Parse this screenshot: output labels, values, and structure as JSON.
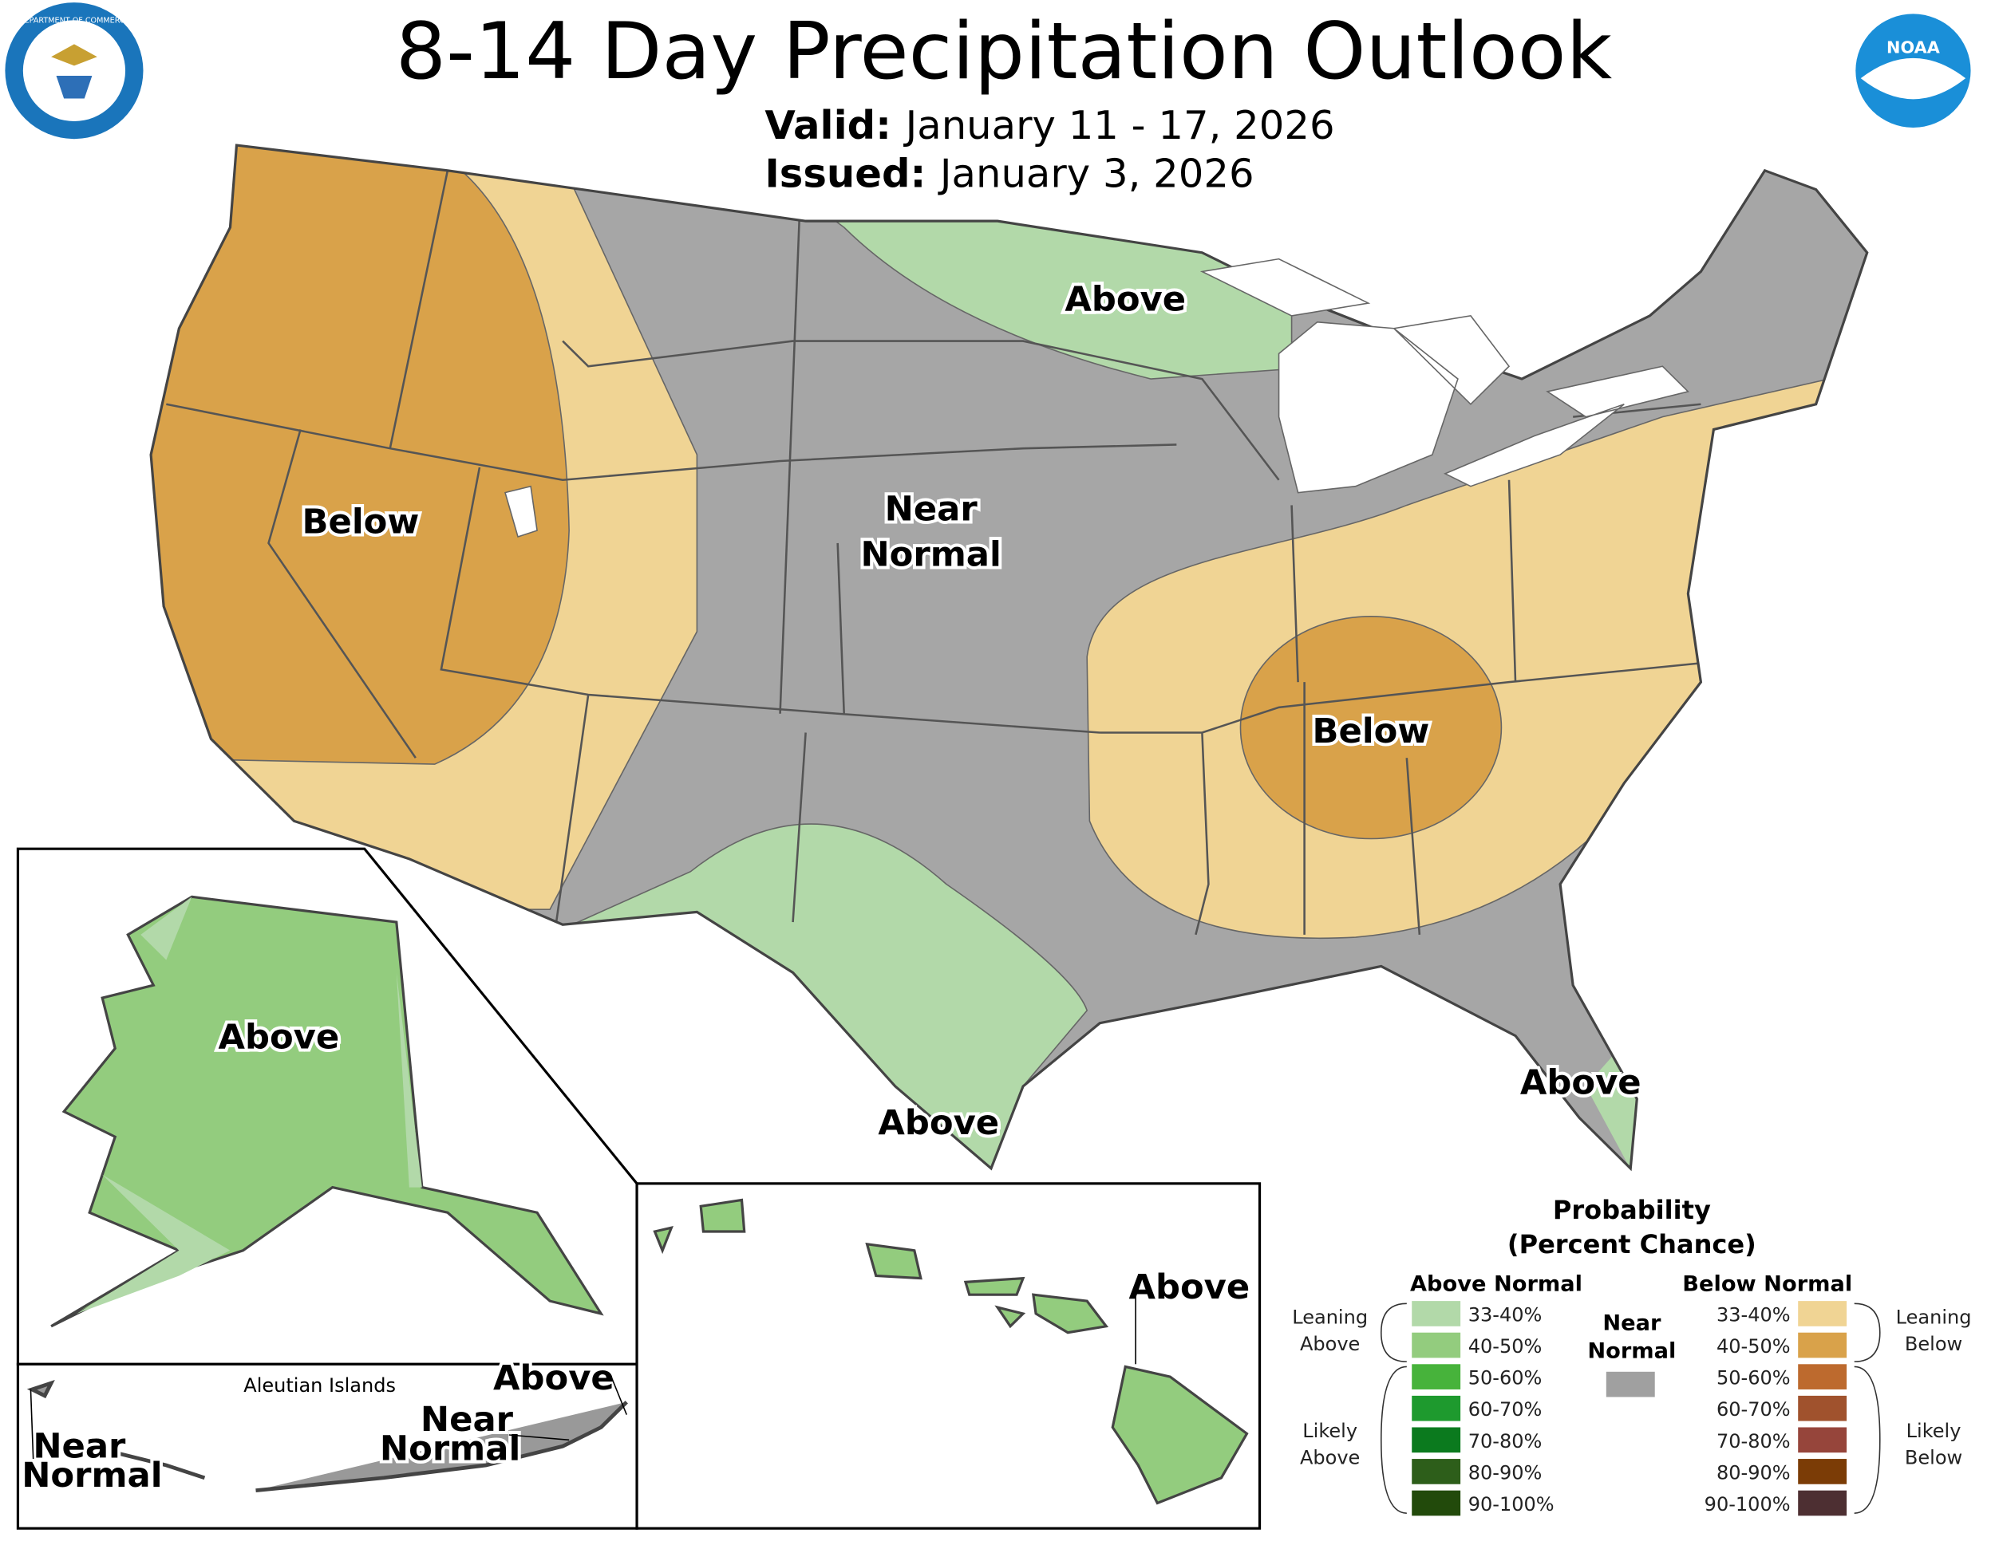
{
  "header": {
    "title": "8-14 Day Precipitation Outlook",
    "valid_label": "Valid:",
    "valid": "January 11 - 17, 2026",
    "issued_label": "Issued:",
    "issued": "January 3, 2026",
    "left_logo": "DEPARTMENT OF COMMERCE",
    "right_logo": "NOAA"
  },
  "map": {
    "labels": [
      {
        "lines": [
          "Below"
        ]
      },
      {
        "lines": [
          "Near",
          "Normal"
        ]
      },
      {
        "lines": [
          "Above"
        ]
      },
      {
        "lines": [
          "Below"
        ]
      },
      {
        "lines": [
          "Above"
        ]
      },
      {
        "lines": [
          "Above"
        ]
      }
    ],
    "alaska": {
      "label": "Above"
    },
    "aleutians": {
      "title": "Aleutian Islands",
      "labels": [
        {
          "lines": [
            "Above"
          ]
        },
        {
          "lines": [
            "Near",
            "Normal"
          ]
        },
        {
          "lines": [
            "Near",
            "Normal"
          ]
        }
      ]
    },
    "hawaii": {
      "label": "Above"
    }
  },
  "legend": {
    "title": [
      "Probability",
      "(Percent Chance)"
    ],
    "above_header": "Above Normal",
    "below_header": "Below Normal",
    "near": {
      "lines": [
        "Near",
        "Normal"
      ],
      "color": "#a0a0a0"
    },
    "above": [
      {
        "label": "33-40%",
        "color": "#b2d9a9"
      },
      {
        "label": "40-50%",
        "color": "#93cc7e"
      },
      {
        "label": "50-60%",
        "color": "#47b33b"
      },
      {
        "label": "60-70%",
        "color": "#1e9a2e"
      },
      {
        "label": "70-80%",
        "color": "#0b7a1e"
      },
      {
        "label": "80-90%",
        "color": "#2d5e1a"
      },
      {
        "label": "90-100%",
        "color": "#224a0b"
      }
    ],
    "below": [
      {
        "label": "33-40%",
        "color": "#f0d494"
      },
      {
        "label": "40-50%",
        "color": "#d9a24a"
      },
      {
        "label": "50-60%",
        "color": "#bd6a2e"
      },
      {
        "label": "60-70%",
        "color": "#a0522d"
      },
      {
        "label": "70-80%",
        "color": "#96453b"
      },
      {
        "label": "80-90%",
        "color": "#7b3c06"
      },
      {
        "label": "90-100%",
        "color": "#4d2f32"
      }
    ],
    "groups": {
      "leaning_above": [
        "Leaning",
        "Above"
      ],
      "likely_above": [
        "Likely",
        "Above"
      ],
      "leaning_below": [
        "Leaning",
        "Below"
      ],
      "likely_below": [
        "Likely",
        "Below"
      ]
    }
  }
}
